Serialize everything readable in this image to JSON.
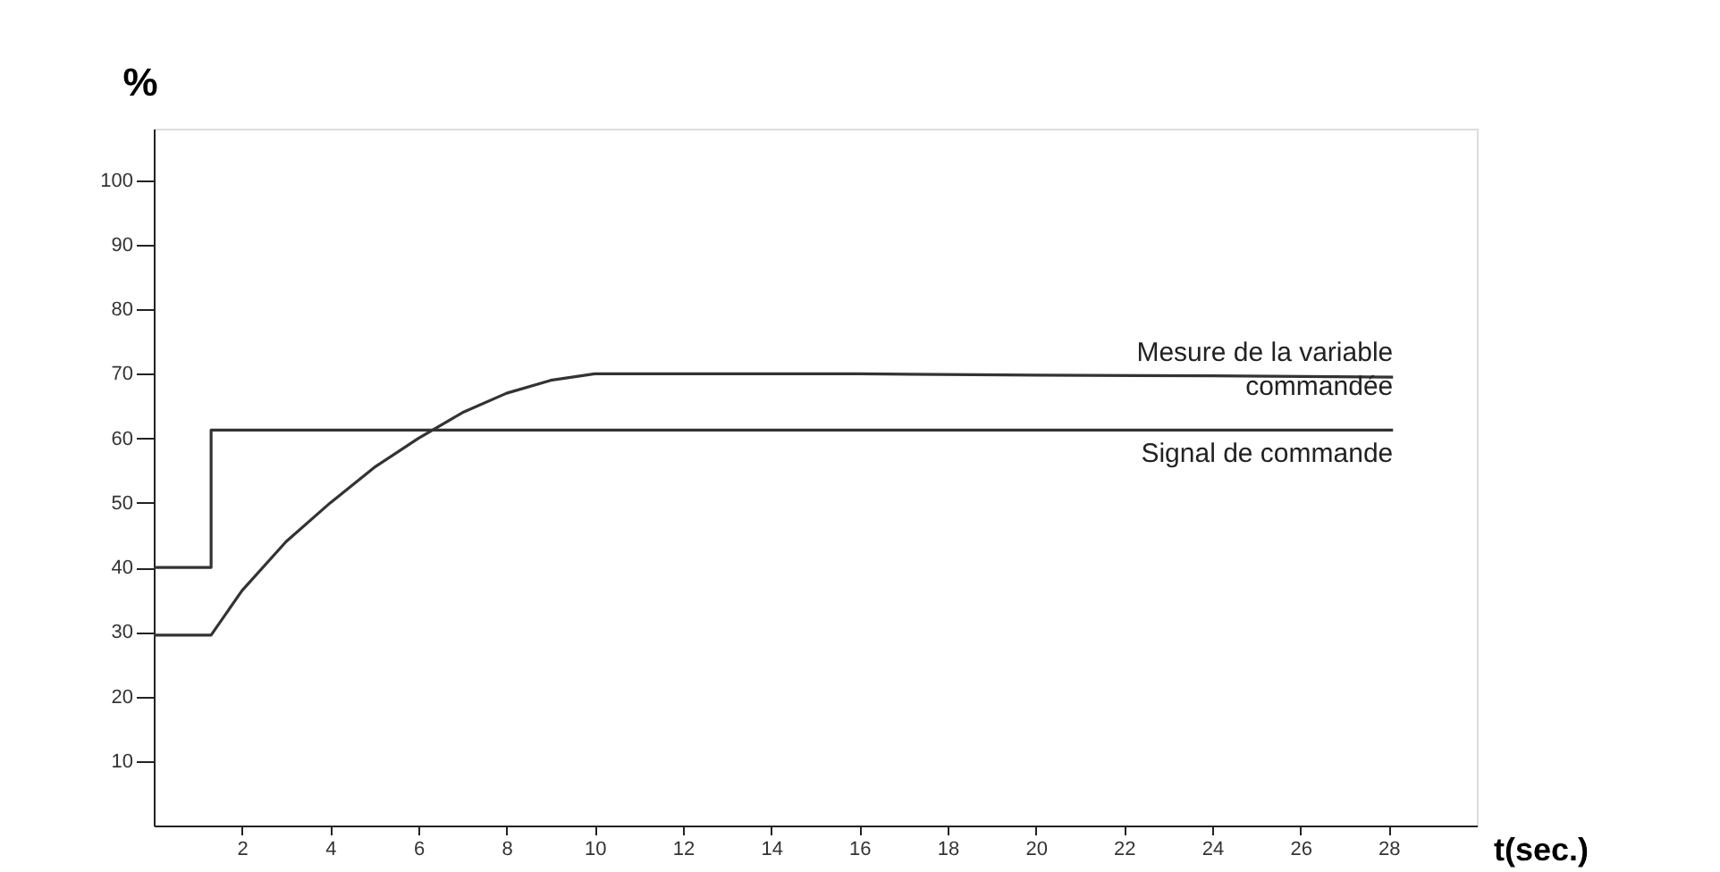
{
  "chart_data": {
    "type": "line",
    "xlabel": "t(sec.)",
    "ylabel": "%",
    "xlim": [
      0,
      30
    ],
    "xticks": [
      2,
      4,
      6,
      8,
      10,
      12,
      14,
      16,
      18,
      20,
      22,
      24,
      26,
      28
    ],
    "ylim": [
      0,
      108
    ],
    "yticks": [
      10,
      20,
      30,
      40,
      50,
      60,
      70,
      80,
      90,
      100
    ],
    "grid": false,
    "legend": false,
    "marker": "none",
    "line_style": "solid",
    "series": [
      {
        "color": "#333333",
        "x": [
          0,
          1.3,
          2,
          3,
          4,
          5,
          6,
          7,
          8,
          9,
          10,
          12,
          16,
          20,
          24,
          28.1
        ],
        "values": [
          29.5,
          29.5,
          36.4,
          44,
          50,
          55.5,
          60,
          64,
          67,
          69,
          70,
          70,
          70,
          69.8,
          69.7,
          69.5
        ]
      },
      {
        "color": "#333333",
        "x": [
          0,
          1.3,
          1.3,
          28.1
        ],
        "values": [
          40,
          40,
          61.3,
          61.3
        ]
      }
    ],
    "annotations": [
      "Mesure de la variable\ncommandée",
      "Signal de commande"
    ]
  }
}
